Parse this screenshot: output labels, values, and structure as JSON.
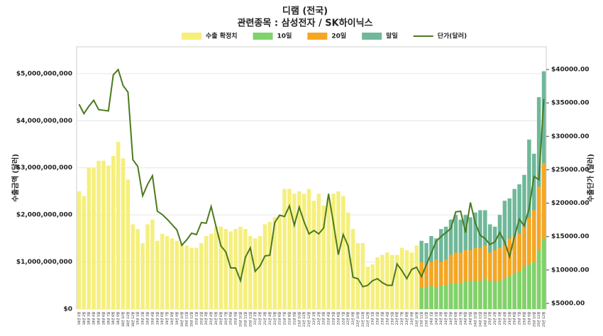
{
  "chart_data": {
    "type": "bar-line",
    "title": "디램 (전국)",
    "subtitle": "관련종목 : 삼성전자 / SK하이닉스",
    "y_label": "수출금액 (달러)",
    "y2_label": "수출단가 (달러)",
    "categories": [
      "18년 1월",
      "18년 2월",
      "18년 3월",
      "18년 4월",
      "18년 5월",
      "18년 6월",
      "18년 7월",
      "18년 8월",
      "18년 9월",
      "18년 10월",
      "18년 11월",
      "18년 12월",
      "19년 1월",
      "19년 2월",
      "19년 3월",
      "19년 4월",
      "19년 5월",
      "19년 6월",
      "19년 7월",
      "19년 8월",
      "19년 9월",
      "19년 10월",
      "19년 11월",
      "19년 12월",
      "20년 1월",
      "20년 2월",
      "20년 3월",
      "20년 4월",
      "20년 5월",
      "20년 6월",
      "20년 7월",
      "20년 8월",
      "20년 9월",
      "20년 10월",
      "20년 11월",
      "20년 12월",
      "21년 1월",
      "21년 2월",
      "21년 3월",
      "21년 4월",
      "21년 5월",
      "21년 6월",
      "21년 7월",
      "21년 8월",
      "21년 9월",
      "21년 10월",
      "21년 11월",
      "21년 12월",
      "22년 1월",
      "22년 2월",
      "22년 3월",
      "22년 4월",
      "22년 5월",
      "22년 6월",
      "22년 7월",
      "22년 8월",
      "22년 9월",
      "22년 10월",
      "22년 11월",
      "22년 12월",
      "23년 1월",
      "23년 2월",
      "23년 3월",
      "23년 4월",
      "23년 5월",
      "23년 6월",
      "23년 7월",
      "23년 8월",
      "23년 9월",
      "23년 10월",
      "23년 11월",
      "23년 12월",
      "24년 1월",
      "24년 2월",
      "24년 3월",
      "24년 4월",
      "24년 5월",
      "24년 6월",
      "24년 7월",
      "24년 8월",
      "24년 9월",
      "24년 10월",
      "24년 11월",
      "24년 12월",
      "25년 1월",
      "25년 2월",
      "25년 3월",
      "25년 4월",
      "25년 5월",
      "25년 6월",
      "25년 7월",
      "25년 8월",
      "25년 9월",
      "25년 10월",
      "25년 11월",
      "25년 12월"
    ],
    "series": [
      {
        "name": "수출 확정치",
        "color": "#f5ef7c",
        "values": [
          2500000000,
          2400000000,
          3000000000,
          3000000000,
          3150000000,
          3150000000,
          3050000000,
          3250000000,
          3550000000,
          3200000000,
          2750000000,
          1800000000,
          1700000000,
          1400000000,
          1800000000,
          1900000000,
          1450000000,
          1600000000,
          1550000000,
          1500000000,
          1450000000,
          1400000000,
          1350000000,
          1300000000,
          1300000000,
          1400000000,
          1550000000,
          1600000000,
          1750000000,
          1750000000,
          1700000000,
          1650000000,
          1700000000,
          1750000000,
          1700000000,
          1550000000,
          1500000000,
          1550000000,
          1800000000,
          1850000000,
          1950000000,
          2000000000,
          2550000000,
          2550000000,
          2450000000,
          2500000000,
          2450000000,
          2550000000,
          2300000000,
          2450000000,
          2200000000,
          2350000000,
          2450000000,
          2500000000,
          2400000000,
          2050000000,
          1700000000,
          1400000000,
          1400000000,
          900000000,
          950000000,
          1100000000,
          1150000000,
          1200000000,
          1150000000,
          1150000000,
          1300000000,
          1250000000,
          1200000000,
          1350000000,
          null,
          null,
          null,
          null,
          null,
          null,
          null,
          null,
          null,
          null,
          null,
          null,
          null,
          null,
          null,
          null,
          null,
          null,
          null,
          null,
          null,
          null,
          null,
          null,
          null,
          null
        ]
      },
      {
        "name": "10일",
        "color": "#7ed36a",
        "values": [
          null,
          null,
          null,
          null,
          null,
          null,
          null,
          null,
          null,
          null,
          null,
          null,
          null,
          null,
          null,
          null,
          null,
          null,
          null,
          null,
          null,
          null,
          null,
          null,
          null,
          null,
          null,
          null,
          null,
          null,
          null,
          null,
          null,
          null,
          null,
          null,
          null,
          null,
          null,
          null,
          null,
          null,
          null,
          null,
          null,
          null,
          null,
          null,
          null,
          null,
          null,
          null,
          null,
          null,
          null,
          null,
          null,
          null,
          null,
          null,
          null,
          null,
          null,
          null,
          null,
          null,
          null,
          null,
          null,
          null,
          450000000,
          450000000,
          500000000,
          450000000,
          500000000,
          500000000,
          550000000,
          550000000,
          550000000,
          600000000,
          600000000,
          600000000,
          600000000,
          650000000,
          600000000,
          600000000,
          600000000,
          650000000,
          700000000,
          750000000,
          800000000,
          900000000,
          950000000,
          1000000000,
          1250000000,
          1500000000
        ]
      },
      {
        "name": "20일",
        "color": "#f5a623",
        "values": [
          null,
          null,
          null,
          null,
          null,
          null,
          null,
          null,
          null,
          null,
          null,
          null,
          null,
          null,
          null,
          null,
          null,
          null,
          null,
          null,
          null,
          null,
          null,
          null,
          null,
          null,
          null,
          null,
          null,
          null,
          null,
          null,
          null,
          null,
          null,
          null,
          null,
          null,
          null,
          null,
          null,
          null,
          null,
          null,
          null,
          null,
          null,
          null,
          null,
          null,
          null,
          null,
          null,
          null,
          null,
          null,
          null,
          null,
          null,
          null,
          null,
          null,
          null,
          null,
          null,
          null,
          null,
          null,
          null,
          null,
          1000000000,
          950000000,
          1000000000,
          1050000000,
          1000000000,
          1050000000,
          1150000000,
          1200000000,
          1200000000,
          1250000000,
          1250000000,
          1300000000,
          1300000000,
          1350000000,
          1200000000,
          1250000000,
          1300000000,
          1350000000,
          1500000000,
          1550000000,
          1600000000,
          1750000000,
          1950000000,
          2100000000,
          2600000000,
          3100000000
        ]
      },
      {
        "name": "말일",
        "color": "#6fb89a",
        "values": [
          null,
          null,
          null,
          null,
          null,
          null,
          null,
          null,
          null,
          null,
          null,
          null,
          null,
          null,
          null,
          null,
          null,
          null,
          null,
          null,
          null,
          null,
          null,
          null,
          null,
          null,
          null,
          null,
          null,
          null,
          null,
          null,
          null,
          null,
          null,
          null,
          null,
          null,
          null,
          null,
          null,
          null,
          null,
          null,
          null,
          null,
          null,
          null,
          null,
          null,
          null,
          null,
          null,
          null,
          null,
          null,
          null,
          null,
          null,
          null,
          null,
          null,
          null,
          null,
          null,
          null,
          null,
          null,
          null,
          null,
          1450000000,
          1400000000,
          1550000000,
          1500000000,
          1700000000,
          1750000000,
          1900000000,
          2000000000,
          1900000000,
          2000000000,
          1950000000,
          2050000000,
          2100000000,
          2100000000,
          1800000000,
          1750000000,
          2000000000,
          2300000000,
          2350000000,
          2550000000,
          2650000000,
          2850000000,
          3600000000,
          3300000000,
          4500000000,
          5050000000
        ]
      },
      {
        "name": "단가(달러)",
        "color": "#4a7a1e",
        "axis": "y2",
        "values": [
          34800,
          33400,
          34500,
          35400,
          34000,
          33900,
          33800,
          39200,
          40000,
          37600,
          36600,
          26500,
          25500,
          21100,
          22800,
          24100,
          18800,
          18300,
          17600,
          16800,
          16000,
          13700,
          14500,
          15500,
          15300,
          17100,
          17000,
          19500,
          16500,
          13600,
          12700,
          10300,
          10300,
          8400,
          11900,
          13300,
          9800,
          10600,
          12100,
          12200,
          17100,
          18200,
          18000,
          19600,
          16700,
          19400,
          17200,
          15400,
          15900,
          15400,
          16300,
          21400,
          17000,
          12300,
          15300,
          13600,
          8900,
          8700,
          7500,
          7700,
          8400,
          8700,
          8100,
          7700,
          7700,
          10900,
          9900,
          8700,
          10100,
          10400,
          9000,
          10800,
          12500,
          14300,
          15000,
          15600,
          16200,
          18700,
          18800,
          15600,
          20100,
          17000,
          15200,
          14700,
          13800,
          14200,
          15600,
          14200,
          12000,
          15000,
          17600,
          16600,
          19200,
          24000,
          23500,
          35600
        ]
      }
    ],
    "ylim": [
      0,
      5570000000
    ],
    "yticks": [
      {
        "value": 0,
        "label": "$0"
      },
      {
        "value": 1000000000,
        "label": "$1,000,000,000"
      },
      {
        "value": 2000000000,
        "label": "$2,000,000,000"
      },
      {
        "value": 3000000000,
        "label": "$3,000,000,000"
      },
      {
        "value": 4000000000,
        "label": "$4,000,000,000"
      },
      {
        "value": 5000000000,
        "label": "$5,000,000,000"
      }
    ],
    "y2lim": [
      4150,
      43400
    ],
    "y2ticks": [
      {
        "value": 5000,
        "label": "$5000.00"
      },
      {
        "value": 10000,
        "label": "$10000.00"
      },
      {
        "value": 15000,
        "label": "$15000.00"
      },
      {
        "value": 20000,
        "label": "$20000.00"
      },
      {
        "value": 25000,
        "label": "$25000.00"
      },
      {
        "value": 30000,
        "label": "$30000.00"
      },
      {
        "value": 35000,
        "label": "$35000.00"
      },
      {
        "value": 40000,
        "label": "$40000.00"
      }
    ],
    "grid": true
  }
}
